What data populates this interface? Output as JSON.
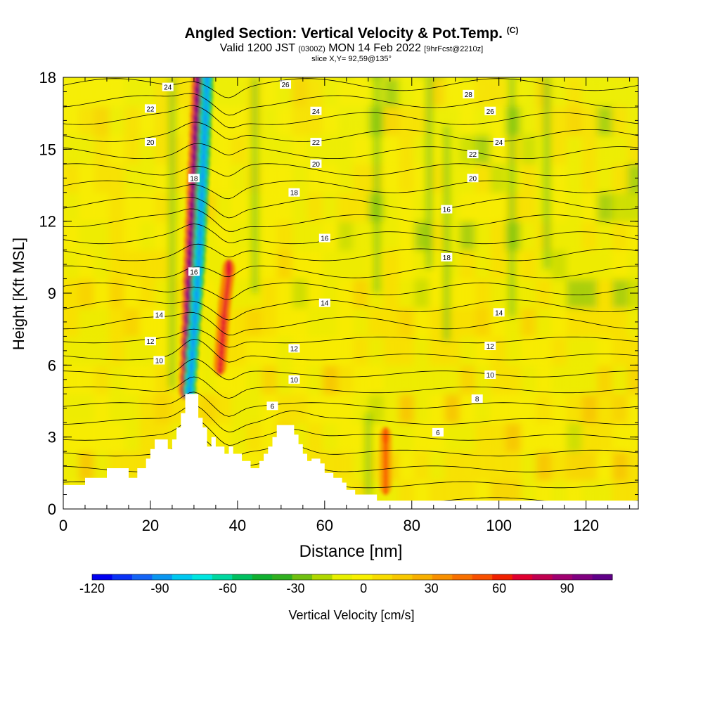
{
  "header": {
    "title_main": "Angled Section: Vertical Velocity & Pot.Temp.",
    "title_unit": "(C)",
    "valid_prefix": "Valid 1200 JST",
    "valid_utc": "(0300Z)",
    "valid_date": "MON 14 Feb 2022",
    "forecast": "[9hrFcst@2210z]",
    "slice": "slice X,Y= 92,59@135°"
  },
  "chart_data": {
    "type": "heatmap",
    "xlabel": "Distance [nm]",
    "ylabel": "Height [Kft MSL]",
    "xlim": [
      0,
      132
    ],
    "ylim": [
      0,
      18
    ],
    "x_ticks": [
      0,
      20,
      40,
      60,
      80,
      100,
      120
    ],
    "y_ticks": [
      0,
      3,
      6,
      9,
      12,
      15,
      18
    ],
    "colorbar": {
      "label": "Vertical Velocity [cm/s]",
      "range": [
        -120,
        110
      ],
      "tick_values": [
        -120,
        -90,
        -60,
        -30,
        0,
        30,
        60,
        90
      ],
      "colors": [
        "#0000f0",
        "#0a32f5",
        "#1464f5",
        "#0a96f0",
        "#00c8f0",
        "#00e6e0",
        "#00d8a0",
        "#00c060",
        "#10b030",
        "#30b020",
        "#70c010",
        "#b0d800",
        "#e8f000",
        "#f8f000",
        "#f8dc00",
        "#f8c800",
        "#f8b000",
        "#f89000",
        "#f87000",
        "#f85000",
        "#f02000",
        "#e00030",
        "#c00050",
        "#a00070",
        "#800080",
        "#600088"
      ]
    },
    "terrain": [
      [
        0,
        1
      ],
      [
        5,
        1
      ],
      [
        5,
        1.3
      ],
      [
        10,
        1.3
      ],
      [
        10,
        1.7
      ],
      [
        15,
        1.7
      ],
      [
        15,
        1.3
      ],
      [
        17,
        1.3
      ],
      [
        17,
        1.7
      ],
      [
        19,
        1.7
      ],
      [
        19,
        2.1
      ],
      [
        20,
        2.1
      ],
      [
        20,
        2.5
      ],
      [
        21,
        2.5
      ],
      [
        21,
        2.9
      ],
      [
        24,
        2.9
      ],
      [
        24,
        2.5
      ],
      [
        25,
        2.5
      ],
      [
        25,
        2.9
      ],
      [
        26,
        2.9
      ],
      [
        26,
        3.4
      ],
      [
        27,
        3.4
      ],
      [
        27,
        4
      ],
      [
        28,
        4
      ],
      [
        28,
        4.8
      ],
      [
        31,
        4.8
      ],
      [
        31,
        3.8
      ],
      [
        32,
        3.8
      ],
      [
        32,
        3.4
      ],
      [
        33,
        3.4
      ],
      [
        33,
        2.6
      ],
      [
        34,
        2.6
      ],
      [
        34,
        3
      ],
      [
        35,
        3
      ],
      [
        35,
        2.6
      ],
      [
        37,
        2.6
      ],
      [
        37,
        2.3
      ],
      [
        38,
        2.3
      ],
      [
        38,
        2.6
      ],
      [
        39,
        2.6
      ],
      [
        39,
        2.3
      ],
      [
        41,
        2.3
      ],
      [
        41,
        2
      ],
      [
        43,
        2
      ],
      [
        43,
        1.7
      ],
      [
        45,
        1.7
      ],
      [
        45,
        2
      ],
      [
        46,
        2
      ],
      [
        46,
        2.3
      ],
      [
        47,
        2.3
      ],
      [
        47,
        2.6
      ],
      [
        48,
        2.6
      ],
      [
        48,
        3
      ],
      [
        49,
        3
      ],
      [
        49,
        3.5
      ],
      [
        53,
        3.5
      ],
      [
        53,
        3.1
      ],
      [
        54,
        3.1
      ],
      [
        54,
        2.7
      ],
      [
        55,
        2.7
      ],
      [
        55,
        2.3
      ],
      [
        56,
        2.3
      ],
      [
        56,
        2
      ],
      [
        57,
        2
      ],
      [
        57,
        2.1
      ],
      [
        59,
        2.1
      ],
      [
        59,
        1.9
      ],
      [
        60,
        1.9
      ],
      [
        60,
        1.5
      ],
      [
        62,
        1.5
      ],
      [
        62,
        1.3
      ],
      [
        64,
        1.3
      ],
      [
        64,
        1.1
      ],
      [
        65,
        1.1
      ],
      [
        65,
        0.8
      ],
      [
        67,
        0.8
      ],
      [
        67,
        0.6
      ],
      [
        72,
        0.6
      ],
      [
        72,
        0.35
      ],
      [
        132,
        0.35
      ]
    ],
    "theta_contours": [
      {
        "label": "6",
        "labels_at": [
          [
            48,
            4.3
          ],
          [
            86,
            3.2
          ]
        ]
      },
      {
        "label": "8",
        "labels_at": [
          [
            95,
            4.6
          ]
        ]
      },
      {
        "label": "10",
        "labels_at": [
          [
            22,
            6.2
          ],
          [
            53,
            5.4
          ],
          [
            98,
            5.6
          ]
        ]
      },
      {
        "label": "12",
        "labels_at": [
          [
            20,
            7
          ],
          [
            53,
            6.7
          ],
          [
            98,
            6.8
          ]
        ]
      },
      {
        "label": "14",
        "labels_at": [
          [
            22,
            8.1
          ],
          [
            60,
            8.6
          ],
          [
            100,
            8.2
          ]
        ]
      },
      {
        "label": "16",
        "labels_at": [
          [
            30,
            9.9
          ],
          [
            60,
            11.3
          ],
          [
            88,
            12.5
          ]
        ]
      },
      {
        "label": "18",
        "labels_at": [
          [
            30,
            13.8
          ],
          [
            53,
            13.2
          ],
          [
            88,
            10.5
          ]
        ]
      },
      {
        "label": "20",
        "labels_at": [
          [
            20,
            15.3
          ],
          [
            58,
            14.4
          ],
          [
            94,
            13.8
          ]
        ]
      },
      {
        "label": "22",
        "labels_at": [
          [
            20,
            16.7
          ],
          [
            58,
            15.3
          ],
          [
            94,
            14.8
          ]
        ]
      },
      {
        "label": "24",
        "labels_at": [
          [
            24,
            17.6
          ],
          [
            58,
            16.6
          ],
          [
            100,
            15.3
          ]
        ]
      },
      {
        "label": "26",
        "labels_at": [
          [
            51,
            17.7
          ],
          [
            98,
            16.6
          ]
        ]
      },
      {
        "label": "28",
        "labels_at": [
          [
            93,
            17.3
          ]
        ]
      }
    ],
    "features": [
      {
        "kind": "updraft",
        "max_cm_s": 100,
        "path": [
          [
            28,
            5
          ],
          [
            29,
            10
          ],
          [
            30,
            14
          ],
          [
            31,
            18
          ]
        ]
      },
      {
        "kind": "downdraft",
        "min_cm_s": -90,
        "path": [
          [
            29,
            5
          ],
          [
            31,
            10
          ],
          [
            32,
            14
          ],
          [
            33,
            18
          ]
        ]
      },
      {
        "kind": "updraft",
        "max_cm_s": 70,
        "path": [
          [
            36,
            6
          ],
          [
            37,
            8.5
          ],
          [
            38,
            10
          ]
        ]
      },
      {
        "kind": "updraft",
        "max_cm_s": 50,
        "path": [
          [
            74,
            1
          ],
          [
            74,
            3
          ]
        ]
      }
    ]
  }
}
